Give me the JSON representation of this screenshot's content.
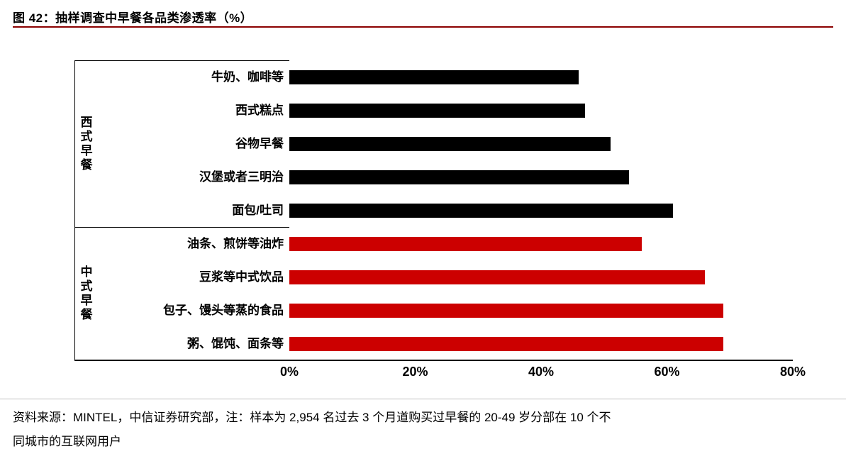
{
  "header": {
    "figure_label": "图 42",
    "title": "图 42：抽样调查中早餐各品类渗透率（%）",
    "accent_color": "#8B0000"
  },
  "chart_data": {
    "type": "bar",
    "orientation": "horizontal",
    "title": "抽样调查中早餐各品类渗透率（%）",
    "xlabel": "",
    "ylabel": "",
    "xlim": [
      0,
      80
    ],
    "grid": false,
    "legend": false,
    "categories": [
      "牛奶、咖啡等",
      "西式糕点",
      "谷物早餐",
      "汉堡或者三明治",
      "面包/吐司",
      "油条、煎饼等油炸",
      "豆浆等中式饮品",
      "包子、馒头等蒸的食品",
      "粥、馄饨、面条等"
    ],
    "values": [
      46,
      47,
      51,
      54,
      61,
      56,
      66,
      69,
      69
    ],
    "groups": [
      {
        "name": "西式早餐",
        "color": "#000000",
        "start": 0,
        "count": 5
      },
      {
        "name": "中式早餐",
        "color": "#CC0000",
        "start": 5,
        "count": 4
      }
    ],
    "ticks": [
      {
        "value": 0,
        "label": "0%"
      },
      {
        "value": 20,
        "label": "20%"
      },
      {
        "value": 40,
        "label": "40%"
      },
      {
        "value": 60,
        "label": "60%"
      },
      {
        "value": 80,
        "label": "80%"
      }
    ]
  },
  "footer": {
    "lines": [
      "资料来源：MINTEL，中信证券研究部，注：样本为 2,954 名过去 3 个月道购买过早餐的 20-49 岁分部在 10 个不",
      "同城市的互联网用户"
    ]
  }
}
